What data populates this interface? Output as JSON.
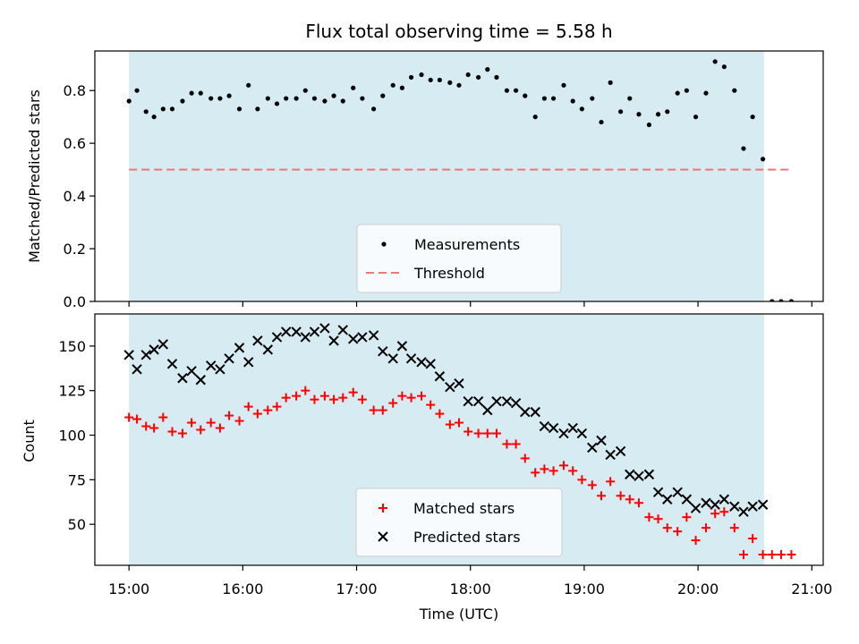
{
  "chart_data": {
    "title": "Flux total observing time = 5.58 h",
    "xlabel": "Time (UTC)",
    "x_unit": "hours UTC",
    "xlim": [
      14.7,
      21.1
    ],
    "xticks": [
      15,
      16,
      17,
      18,
      19,
      20,
      21
    ],
    "xtick_labels": [
      "15:00",
      "16:00",
      "17:00",
      "18:00",
      "19:00",
      "20:00",
      "21:00"
    ],
    "shaded_span": [
      15.0,
      20.58
    ],
    "shade_color": "#add8e6",
    "panels": [
      {
        "type": "scatter",
        "ylabel": "Matched/Predicted stars",
        "ylim": [
          0,
          0.95
        ],
        "yticks": [
          0.0,
          0.2,
          0.4,
          0.6,
          0.8
        ],
        "ytick_labels": [
          "0.0",
          "0.2",
          "0.4",
          "0.6",
          "0.8"
        ],
        "legend_placement": "lower-center",
        "threshold": {
          "name": "Threshold",
          "value": 0.5,
          "x_range": [
            15.0,
            20.83
          ],
          "color": "#ee7777"
        },
        "series": [
          {
            "name": "Measurements",
            "marker": "dot",
            "color": "#000000",
            "x": [
              15.0,
              15.07,
              15.15,
              15.22,
              15.3,
              15.38,
              15.47,
              15.55,
              15.63,
              15.72,
              15.8,
              15.88,
              15.97,
              16.05,
              16.13,
              16.22,
              16.3,
              16.38,
              16.47,
              16.55,
              16.63,
              16.72,
              16.8,
              16.88,
              16.97,
              17.05,
              17.15,
              17.23,
              17.32,
              17.4,
              17.48,
              17.57,
              17.65,
              17.73,
              17.82,
              17.9,
              17.98,
              18.07,
              18.15,
              18.23,
              18.32,
              18.4,
              18.48,
              18.57,
              18.65,
              18.73,
              18.82,
              18.9,
              18.98,
              19.07,
              19.15,
              19.23,
              19.32,
              19.4,
              19.48,
              19.57,
              19.65,
              19.73,
              19.82,
              19.9,
              19.98,
              20.07,
              20.15,
              20.23,
              20.32,
              20.4,
              20.48,
              20.57,
              20.65,
              20.73,
              20.82
            ],
            "y": [
              0.76,
              0.8,
              0.72,
              0.7,
              0.73,
              0.73,
              0.76,
              0.79,
              0.79,
              0.77,
              0.77,
              0.78,
              0.73,
              0.82,
              0.73,
              0.77,
              0.75,
              0.77,
              0.77,
              0.8,
              0.77,
              0.76,
              0.78,
              0.76,
              0.81,
              0.77,
              0.73,
              0.78,
              0.82,
              0.81,
              0.85,
              0.86,
              0.84,
              0.84,
              0.83,
              0.82,
              0.86,
              0.85,
              0.88,
              0.85,
              0.8,
              0.8,
              0.78,
              0.7,
              0.77,
              0.77,
              0.82,
              0.76,
              0.73,
              0.77,
              0.68,
              0.83,
              0.72,
              0.77,
              0.71,
              0.67,
              0.71,
              0.72,
              0.79,
              0.8,
              0.7,
              0.79,
              0.91,
              0.89,
              0.8,
              0.58,
              0.7,
              0.54,
              0.0,
              0.0,
              0.0
            ]
          }
        ]
      },
      {
        "type": "scatter",
        "ylabel": "Count",
        "ylim": [
          27,
          168
        ],
        "yticks": [
          50,
          75,
          100,
          125,
          150
        ],
        "ytick_labels": [
          "50",
          "75",
          "100",
          "125",
          "150"
        ],
        "legend_placement": "lower-center",
        "series": [
          {
            "name": "Matched stars",
            "marker": "plus",
            "color": "#ff0000",
            "x": [
              15.0,
              15.07,
              15.15,
              15.22,
              15.3,
              15.38,
              15.47,
              15.55,
              15.63,
              15.72,
              15.8,
              15.88,
              15.97,
              16.05,
              16.13,
              16.22,
              16.3,
              16.38,
              16.47,
              16.55,
              16.63,
              16.72,
              16.8,
              16.88,
              16.97,
              17.05,
              17.15,
              17.23,
              17.32,
              17.4,
              17.48,
              17.57,
              17.65,
              17.73,
              17.82,
              17.9,
              17.98,
              18.07,
              18.15,
              18.23,
              18.32,
              18.4,
              18.48,
              18.57,
              18.65,
              18.73,
              18.82,
              18.9,
              18.98,
              19.07,
              19.15,
              19.23,
              19.32,
              19.4,
              19.48,
              19.57,
              19.65,
              19.73,
              19.82,
              19.9,
              19.98,
              20.07,
              20.15,
              20.23,
              20.32,
              20.4,
              20.48,
              20.57,
              20.65,
              20.73,
              20.82
            ],
            "y": [
              110,
              109,
              105,
              104,
              110,
              102,
              101,
              107,
              103,
              107,
              104,
              111,
              108,
              116,
              112,
              114,
              116,
              121,
              122,
              125,
              120,
              122,
              120,
              121,
              124,
              120,
              114,
              114,
              118,
              122,
              121,
              122,
              117,
              112,
              106,
              107,
              102,
              101,
              101,
              101,
              95,
              95,
              87,
              79,
              81,
              80,
              83,
              80,
              75,
              72,
              66,
              74,
              66,
              64,
              62,
              54,
              53,
              48,
              46,
              54,
              41,
              48,
              56,
              57,
              48,
              33,
              42,
              33,
              33,
              33,
              33
            ],
            "note_count": 71
          },
          {
            "name": "Predicted stars",
            "marker": "x",
            "color": "#000000",
            "x": [
              15.0,
              15.07,
              15.15,
              15.22,
              15.3,
              15.38,
              15.47,
              15.55,
              15.63,
              15.72,
              15.8,
              15.88,
              15.97,
              16.05,
              16.13,
              16.22,
              16.3,
              16.38,
              16.47,
              16.55,
              16.63,
              16.72,
              16.8,
              16.88,
              16.97,
              17.05,
              17.15,
              17.23,
              17.32,
              17.4,
              17.48,
              17.57,
              17.65,
              17.73,
              17.82,
              17.9,
              17.98,
              18.07,
              18.15,
              18.23,
              18.32,
              18.4,
              18.48,
              18.57,
              18.65,
              18.73,
              18.82,
              18.9,
              18.98,
              19.07,
              19.15,
              19.23,
              19.32,
              19.4,
              19.48,
              19.57,
              19.65,
              19.73,
              19.82,
              19.9,
              19.98,
              20.07,
              20.15,
              20.23,
              20.32,
              20.4,
              20.48,
              20.57
            ],
            "y": [
              145,
              137,
              145,
              148,
              151,
              140,
              132,
              136,
              131,
              139,
              137,
              143,
              149,
              141,
              153,
              148,
              155,
              158,
              158,
              155,
              158,
              160,
              153,
              159,
              154,
              155,
              156,
              147,
              143,
              150,
              143,
              141,
              140,
              133,
              127,
              129,
              119,
              119,
              114,
              119,
              119,
              118,
              113,
              113,
              105,
              104,
              101,
              104,
              101,
              93,
              97,
              89,
              91,
              78,
              77,
              78,
              68,
              64,
              68,
              64,
              59,
              62,
              61,
              64,
              60,
              57,
              60,
              61
            ]
          }
        ]
      }
    ]
  }
}
